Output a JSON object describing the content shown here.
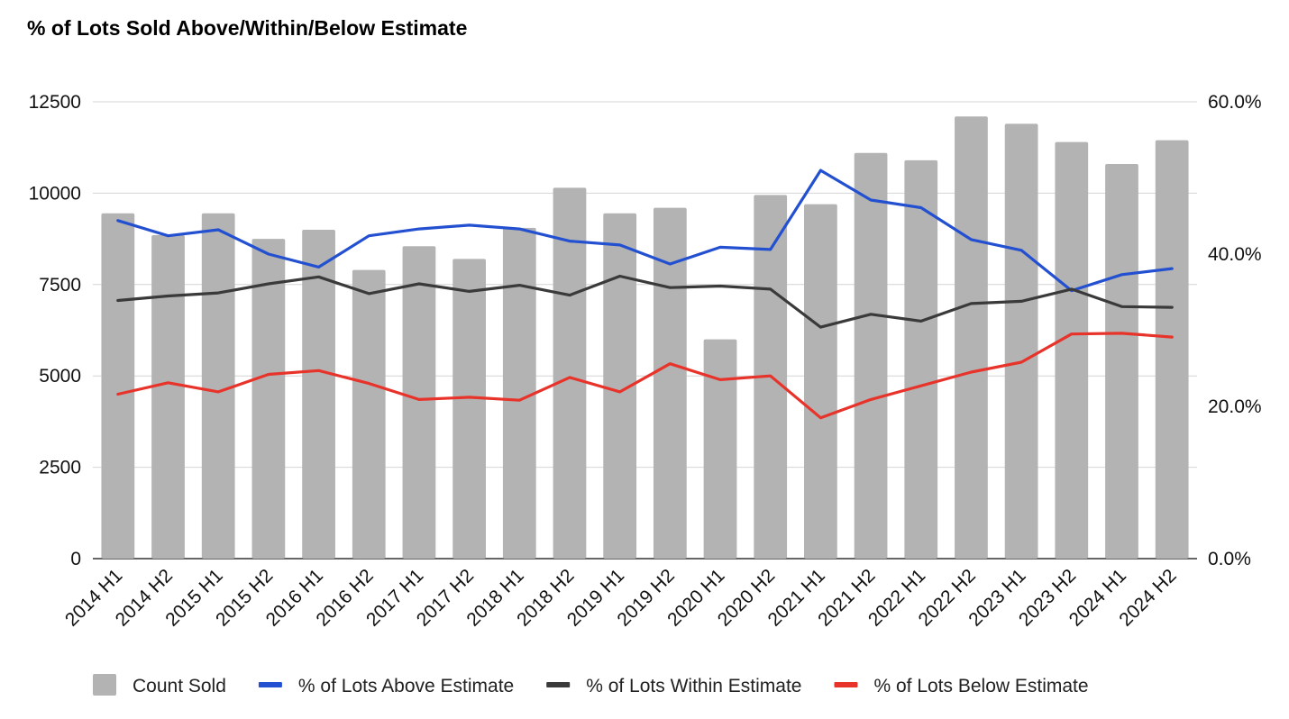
{
  "chart_data": {
    "type": "bar",
    "title": "% of Lots Sold Above/Within/Below Estimate",
    "categories": [
      "2014 H1",
      "2014 H2",
      "2015 H1",
      "2015 H2",
      "2016 H1",
      "2016 H2",
      "2017 H1",
      "2017 H2",
      "2018 H1",
      "2018 H2",
      "2019 H1",
      "2019 H2",
      "2020 H1",
      "2020 H2",
      "2021 H1",
      "2021 H2",
      "2022 H1",
      "2022 H2",
      "2023 H1",
      "2023 H2",
      "2024 H1",
      "2024 H2"
    ],
    "left_axis": {
      "ylim": [
        0,
        12500
      ],
      "ticks": [
        "0",
        "2500",
        "5000",
        "7500",
        "10000",
        "12500"
      ]
    },
    "right_axis": {
      "ylim": [
        0,
        60
      ],
      "ticks": [
        "0.0%",
        "20.0%",
        "40.0%",
        "60.0%"
      ]
    },
    "grid": true,
    "legend_position": "bottom",
    "series": [
      {
        "name": "Count Sold",
        "kind": "bar",
        "axis": "left",
        "color": "#b3b3b3",
        "values": [
          9450,
          8850,
          9450,
          8750,
          9000,
          7900,
          8550,
          8200,
          9050,
          10150,
          9450,
          9600,
          6000,
          9950,
          9700,
          11100,
          10900,
          12100,
          11900,
          11400,
          10800,
          11450
        ]
      },
      {
        "name": "% of Lots Above Estimate",
        "kind": "line",
        "axis": "right",
        "color": "#2350d0",
        "values": [
          44.4,
          42.4,
          43.2,
          40.0,
          38.3,
          42.4,
          43.3,
          43.8,
          43.3,
          41.7,
          41.2,
          38.7,
          40.9,
          40.6,
          51.0,
          47.1,
          46.1,
          41.9,
          40.5,
          35.2,
          37.3,
          38.1
        ]
      },
      {
        "name": "% of Lots Within Estimate",
        "kind": "line",
        "axis": "right",
        "color": "#3a3a3a",
        "values": [
          33.9,
          34.5,
          34.9,
          36.1,
          37.0,
          34.8,
          36.1,
          35.1,
          35.9,
          34.6,
          37.1,
          35.6,
          35.8,
          35.4,
          30.4,
          32.1,
          31.2,
          33.5,
          33.8,
          35.4,
          33.1,
          33.0
        ]
      },
      {
        "name": "% of Lots Below Estimate",
        "kind": "line",
        "axis": "right",
        "color": "#e8332a",
        "values": [
          21.6,
          23.1,
          21.9,
          24.2,
          24.7,
          23.0,
          20.9,
          21.2,
          20.8,
          23.8,
          21.9,
          25.6,
          23.5,
          24.0,
          18.5,
          20.9,
          22.7,
          24.5,
          25.8,
          29.5,
          29.6,
          29.1
        ]
      }
    ]
  }
}
